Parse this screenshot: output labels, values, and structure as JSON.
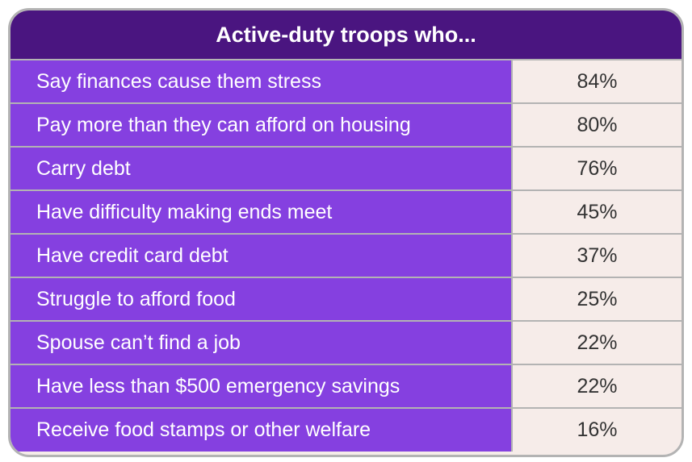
{
  "title": "Active-duty troops who...",
  "colors": {
    "header_bg": "#4a1580",
    "label_bg": "#8540e0",
    "value_bg": "#f6ece9",
    "border": "#b3b3b3"
  },
  "chart_data": {
    "type": "table",
    "title": "Active-duty troops who...",
    "categories": [
      "Say finances cause them stress",
      "Pay more than they can afford on housing",
      "Carry debt",
      "Have difficulty making ends meet",
      "Have credit card debt",
      "Struggle to afford food",
      "Spouse can’t find a job",
      "Have less than $500 emergency savings",
      "Receive food stamps or other welfare"
    ],
    "values": [
      84,
      80,
      76,
      45,
      37,
      25,
      22,
      22,
      16
    ],
    "value_labels": [
      "84%",
      "80%",
      "76%",
      "45%",
      "37%",
      "25%",
      "22%",
      "22%",
      "16%"
    ]
  }
}
